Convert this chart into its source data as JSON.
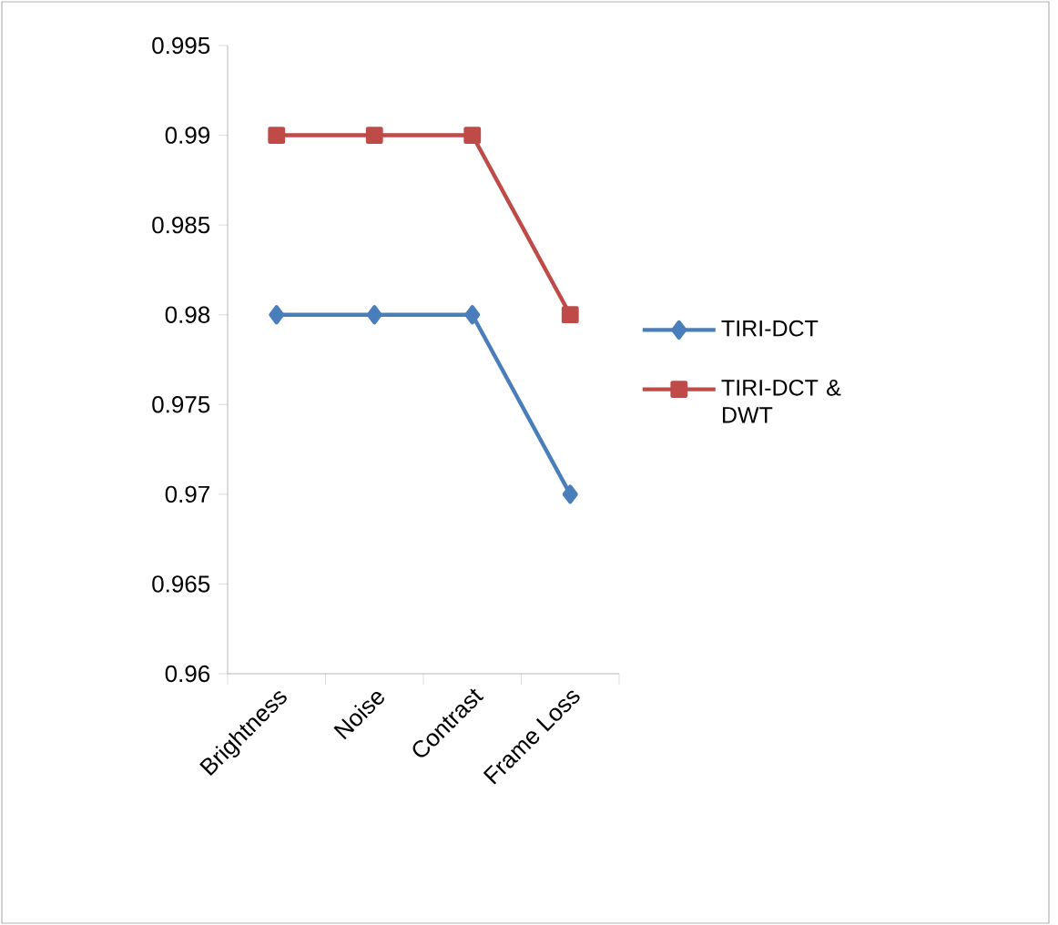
{
  "chart_data": {
    "type": "line",
    "categories": [
      "Brightness",
      "Noise",
      "Contrast",
      "Frame Loss"
    ],
    "series": [
      {
        "name": "TIRI-DCT",
        "color": "#4a7ebb",
        "marker": "diamond",
        "values": [
          0.98,
          0.98,
          0.98,
          0.97
        ]
      },
      {
        "name": "TIRI-DCT & DWT",
        "color": "#be4b48",
        "marker": "square",
        "values": [
          0.99,
          0.99,
          0.99,
          0.98
        ]
      }
    ],
    "ylim": [
      0.96,
      0.995
    ],
    "yticks": [
      0.96,
      0.965,
      0.97,
      0.975,
      0.98,
      0.985,
      0.99,
      0.995
    ],
    "legend": "right"
  }
}
